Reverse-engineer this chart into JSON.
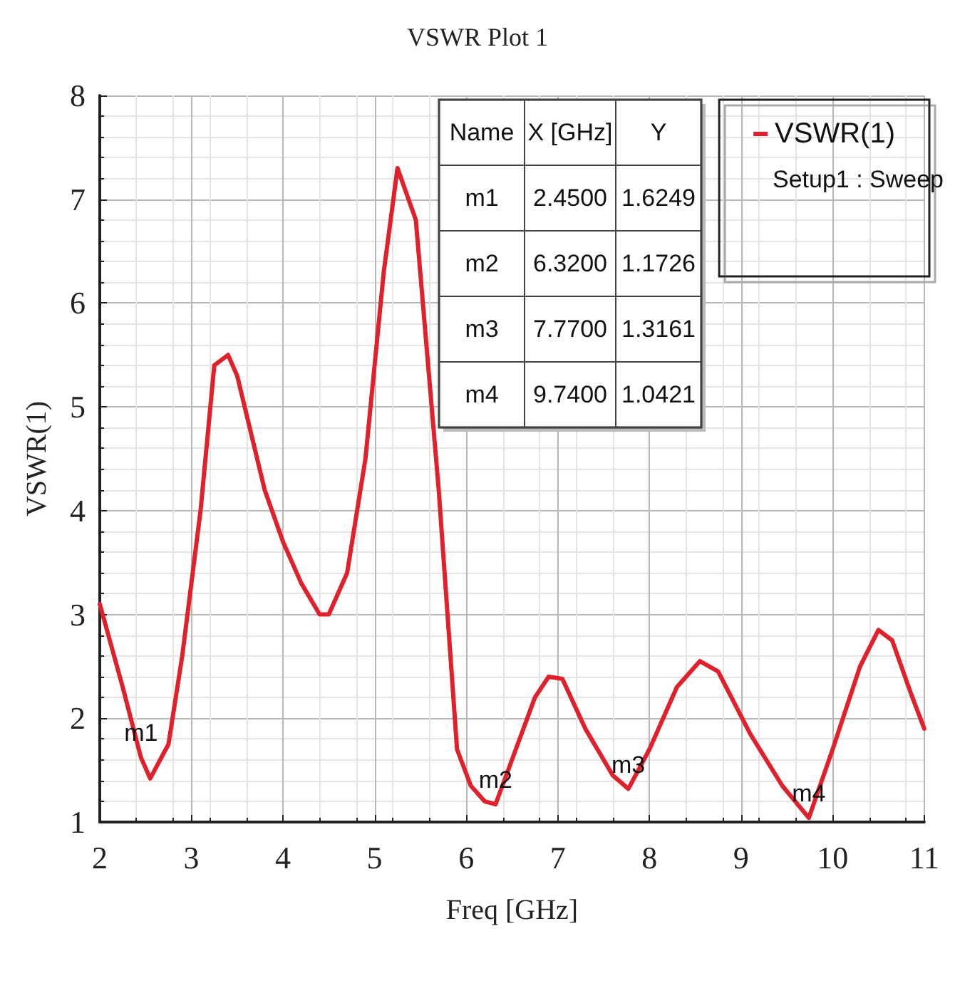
{
  "chart_data": {
    "type": "line",
    "title": "VSWR Plot 1",
    "xlabel": "Freq [GHz]",
    "ylabel": "VSWR(1)",
    "legend_title": "Setup1 : Sweep",
    "xlim": [
      2,
      11
    ],
    "xticks": [
      2,
      3,
      4,
      5,
      6,
      7,
      8,
      9,
      10,
      11
    ],
    "ylim": [
      1,
      8
    ],
    "yticks": [
      1,
      2,
      3,
      4,
      5,
      6,
      7,
      8
    ],
    "grid": true,
    "legend": "top right",
    "marker": "none",
    "line_style": "solid",
    "series": [
      {
        "name": "VSWR(1)",
        "color": "#e0202a",
        "x": [
          2.0,
          2.25,
          2.45,
          2.55,
          2.75,
          2.9,
          3.1,
          3.25,
          3.4,
          3.5,
          3.8,
          4.0,
          4.2,
          4.4,
          4.5,
          4.7,
          4.9,
          5.1,
          5.25,
          5.45,
          5.7,
          5.9,
          6.05,
          6.2,
          6.32,
          6.5,
          6.75,
          6.9,
          7.05,
          7.3,
          7.6,
          7.77,
          8.0,
          8.3,
          8.55,
          8.75,
          9.1,
          9.45,
          9.74,
          10.0,
          10.3,
          10.5,
          10.65,
          10.85,
          11.0
        ],
        "values": [
          3.1,
          2.3,
          1.62,
          1.42,
          1.75,
          2.6,
          4.0,
          5.4,
          5.5,
          5.3,
          4.2,
          3.7,
          3.3,
          3.0,
          3.0,
          3.4,
          4.5,
          6.3,
          7.3,
          6.8,
          4.2,
          1.7,
          1.35,
          1.2,
          1.17,
          1.6,
          2.2,
          2.4,
          2.38,
          1.9,
          1.45,
          1.32,
          1.7,
          2.3,
          2.55,
          2.45,
          1.85,
          1.35,
          1.04,
          1.7,
          2.5,
          2.85,
          2.75,
          2.25,
          1.9
        ]
      }
    ],
    "annotations": [
      "Name",
      "X [GHz]",
      "Y",
      "m1",
      "2.4500",
      "1.6249",
      "m2",
      "6.3200",
      "1.1726",
      "m3",
      "7.7700",
      "1.3161",
      "m4",
      "9.7400",
      "1.0421",
      {
        "text": "m1",
        "x": 2.45,
        "y": 1.6249
      },
      {
        "text": "m2",
        "x": 6.32,
        "y": 1.1726
      },
      {
        "text": "m3",
        "x": 7.77,
        "y": 1.3161
      },
      {
        "text": "m4",
        "x": 9.74,
        "y": 1.0421
      }
    ]
  }
}
